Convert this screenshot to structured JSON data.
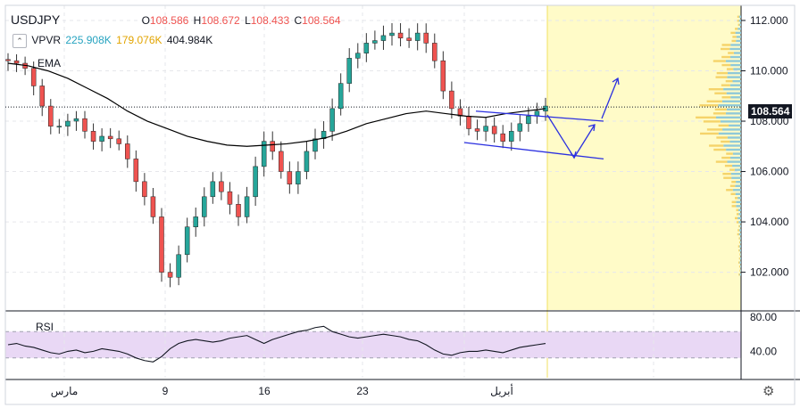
{
  "header": {
    "symbol": "USDJPY",
    "ohlc": {
      "open_label": "O",
      "open": "108.586",
      "high_label": "H",
      "high": "108.672",
      "low_label": "L",
      "low": "108.433",
      "close_label": "C",
      "close": "108.564"
    },
    "vpvr": {
      "label": "VPVR",
      "up": "225.908K",
      "down": "179.076K",
      "total": "404.984K"
    },
    "ema_label": "EMA",
    "collapse_icon": "chevron-up-icon"
  },
  "rsi_label": "RSI",
  "last_price_tag": "108.564",
  "colors": {
    "up": "#26a69a",
    "down": "#ef5350",
    "ema": "#000000",
    "forecast": "#2a2fe0",
    "rsi_band": "#e9d8f5",
    "highlight": "#fffbc8",
    "vpvr_up": "#8fc9d8",
    "vpvr_down": "#f5d36a"
  },
  "chart_data": [
    {
      "type": "candlestick",
      "title": "USDJPY",
      "y_ticks": [
        "112.000",
        "110.000",
        "108.000",
        "106.000",
        "104.000",
        "102.000"
      ],
      "ylim": [
        100.5,
        112.6
      ],
      "x_ticks": [
        "مارس",
        "9",
        "16",
        "23",
        "أبريل"
      ],
      "close": [
        110.4,
        110.3,
        110.1,
        109.4,
        108.6,
        107.8,
        107.8,
        108.0,
        108.1,
        107.6,
        107.2,
        107.4,
        107.3,
        107.1,
        106.5,
        105.6,
        105.0,
        104.2,
        102.0,
        101.8,
        102.7,
        103.8,
        104.2,
        105.0,
        105.6,
        105.2,
        104.7,
        104.2,
        105.0,
        106.2,
        107.2,
        106.8,
        106.0,
        105.5,
        106.0,
        106.8,
        107.3,
        107.6,
        108.5,
        109.5,
        110.5,
        110.7,
        111.1,
        111.2,
        111.4,
        111.5,
        111.3,
        111.2,
        111.5,
        111.1,
        110.4,
        109.2,
        108.5,
        108.2,
        107.7,
        107.6,
        107.8,
        107.5,
        107.2,
        107.6,
        107.9,
        108.2,
        108.4,
        108.6
      ],
      "ema": [
        110.3,
        110.2,
        110.0,
        109.7,
        109.3,
        108.9,
        108.4,
        108.0,
        107.7,
        107.4,
        107.2,
        107.05,
        107.0,
        107.05,
        107.1,
        107.2,
        107.35,
        107.6,
        107.9,
        108.1,
        108.3,
        108.4,
        108.3,
        108.2,
        108.15,
        108.3,
        108.4,
        108.5
      ],
      "forecast_channel": {
        "upper": [
          [
            108.4,
            "start"
          ],
          [
            108.0,
            "end"
          ]
        ],
        "lower": [
          [
            107.15,
            "start"
          ],
          [
            106.5,
            "end"
          ]
        ]
      }
    },
    {
      "type": "line",
      "title": "RSI",
      "y_ticks": [
        "80.00",
        "40.00"
      ],
      "ylim": [
        0,
        100
      ],
      "band": [
        30,
        70
      ],
      "values": [
        50,
        52,
        48,
        46,
        42,
        38,
        36,
        40,
        42,
        38,
        40,
        44,
        42,
        40,
        36,
        30,
        26,
        24,
        32,
        44,
        52,
        56,
        58,
        56,
        54,
        56,
        60,
        62,
        64,
        58,
        52,
        58,
        62,
        66,
        70,
        72,
        76,
        78,
        70,
        66,
        62,
        60,
        62,
        64,
        66,
        64,
        62,
        58,
        56,
        50,
        42,
        36,
        34,
        38,
        40,
        40,
        42,
        40,
        38,
        42,
        46,
        48,
        50,
        52
      ]
    }
  ]
}
